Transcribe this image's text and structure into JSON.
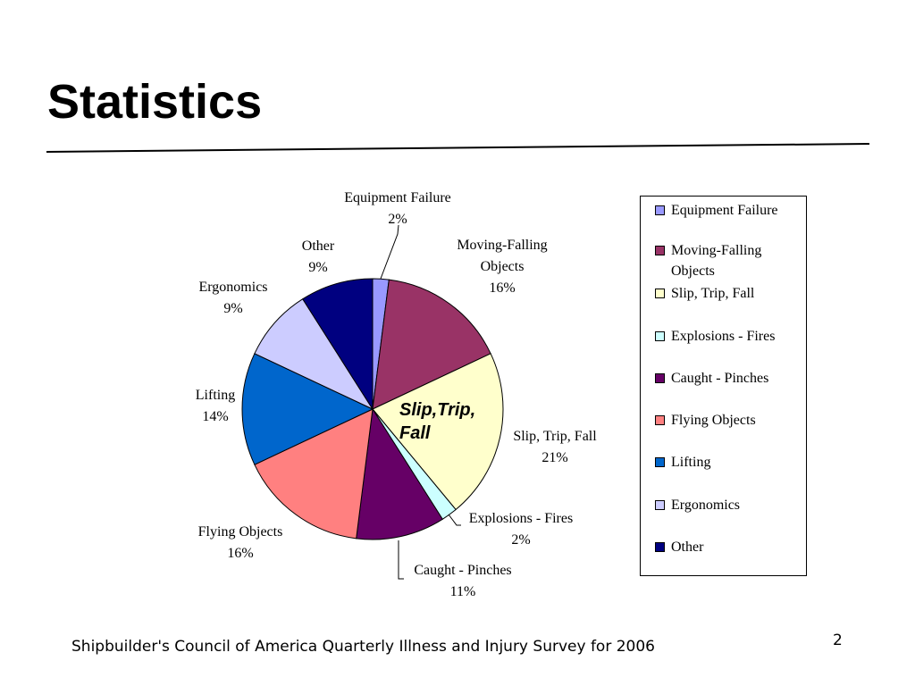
{
  "slide": {
    "title": "Statistics",
    "footer": "Shipbuilder's Council of America Quarterly Illness and Injury Survey for 2006",
    "page_number": "2"
  },
  "chart_data": {
    "type": "pie",
    "title": "",
    "legend_position": "right",
    "slices": [
      {
        "label": "Equipment Failure",
        "label_lines": [
          "Equipment Failure"
        ],
        "value": 2,
        "display": "2%",
        "color": "#9999ff"
      },
      {
        "label": "Moving-Falling Objects",
        "label_lines": [
          "Moving-Falling",
          "Objects"
        ],
        "value": 16,
        "display": "16%",
        "color": "#993366"
      },
      {
        "label": "Slip, Trip, Fall",
        "label_lines": [
          "Slip, Trip, Fall"
        ],
        "value": 21,
        "display": "21%",
        "color": "#ffffcc"
      },
      {
        "label": "Explosions - Fires",
        "label_lines": [
          "Explosions - Fires"
        ],
        "value": 2,
        "display": "2%",
        "color": "#ccffff"
      },
      {
        "label": "Caught - Pinches",
        "label_lines": [
          "Caught - Pinches"
        ],
        "value": 11,
        "display": "11%",
        "color": "#660066"
      },
      {
        "label": "Flying Objects",
        "label_lines": [
          "Flying Objects"
        ],
        "value": 16,
        "display": "16%",
        "color": "#ff8080"
      },
      {
        "label": "Lifting",
        "label_lines": [
          "Lifting"
        ],
        "value": 14,
        "display": "14%",
        "color": "#0066cc"
      },
      {
        "label": "Ergonomics",
        "label_lines": [
          "Ergonomics"
        ],
        "value": 9,
        "display": "9%",
        "color": "#ccccff"
      },
      {
        "label": "Other",
        "label_lines": [
          "Other"
        ],
        "value": 9,
        "display": "9%",
        "color": "#000080"
      }
    ],
    "callout": {
      "lines": [
        "Slip,Trip,",
        "Fall"
      ]
    },
    "legend_entries": [
      {
        "lines": [
          "Equipment Failure"
        ]
      },
      {
        "lines": [
          "Moving-Falling",
          "Objects"
        ]
      },
      {
        "lines": [
          "Slip, Trip, Fall"
        ]
      },
      {
        "lines": [
          "Explosions - Fires"
        ]
      },
      {
        "lines": [
          "Caught - Pinches"
        ]
      },
      {
        "lines": [
          "Flying Objects"
        ]
      },
      {
        "lines": [
          "Lifting"
        ]
      },
      {
        "lines": [
          "Ergonomics"
        ]
      },
      {
        "lines": [
          "Other"
        ]
      }
    ]
  }
}
